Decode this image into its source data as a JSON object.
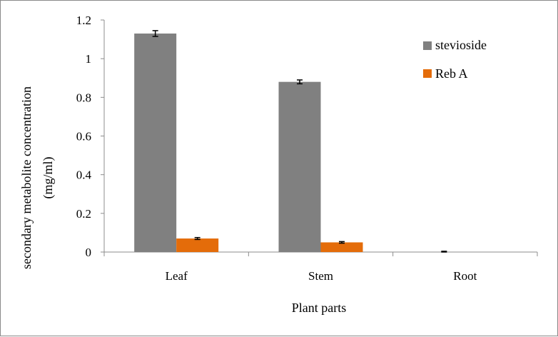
{
  "chart_data": {
    "type": "bar",
    "categories": [
      "Leaf",
      "Stem",
      "Root"
    ],
    "series": [
      {
        "name": "stevioside",
        "color": "#808080",
        "values": [
          1.13,
          0.88,
          0.0
        ],
        "errors": [
          0.015,
          0.01,
          0.004
        ]
      },
      {
        "name": "Reb A",
        "color": "#e46c0a",
        "values": [
          0.07,
          0.05,
          0.0
        ],
        "errors": [
          0.005,
          0.004,
          0.0
        ]
      }
    ],
    "xlabel": "Plant parts",
    "ylabel": [
      "secondary metabolite concentration",
      "(mg/ml)"
    ],
    "ylim": [
      0,
      1.2
    ],
    "yticks": [
      "0",
      "0.2",
      "0.4",
      "0.6",
      "0.8",
      "1",
      "1.2"
    ],
    "grid": false,
    "legend_position": "top-right"
  }
}
